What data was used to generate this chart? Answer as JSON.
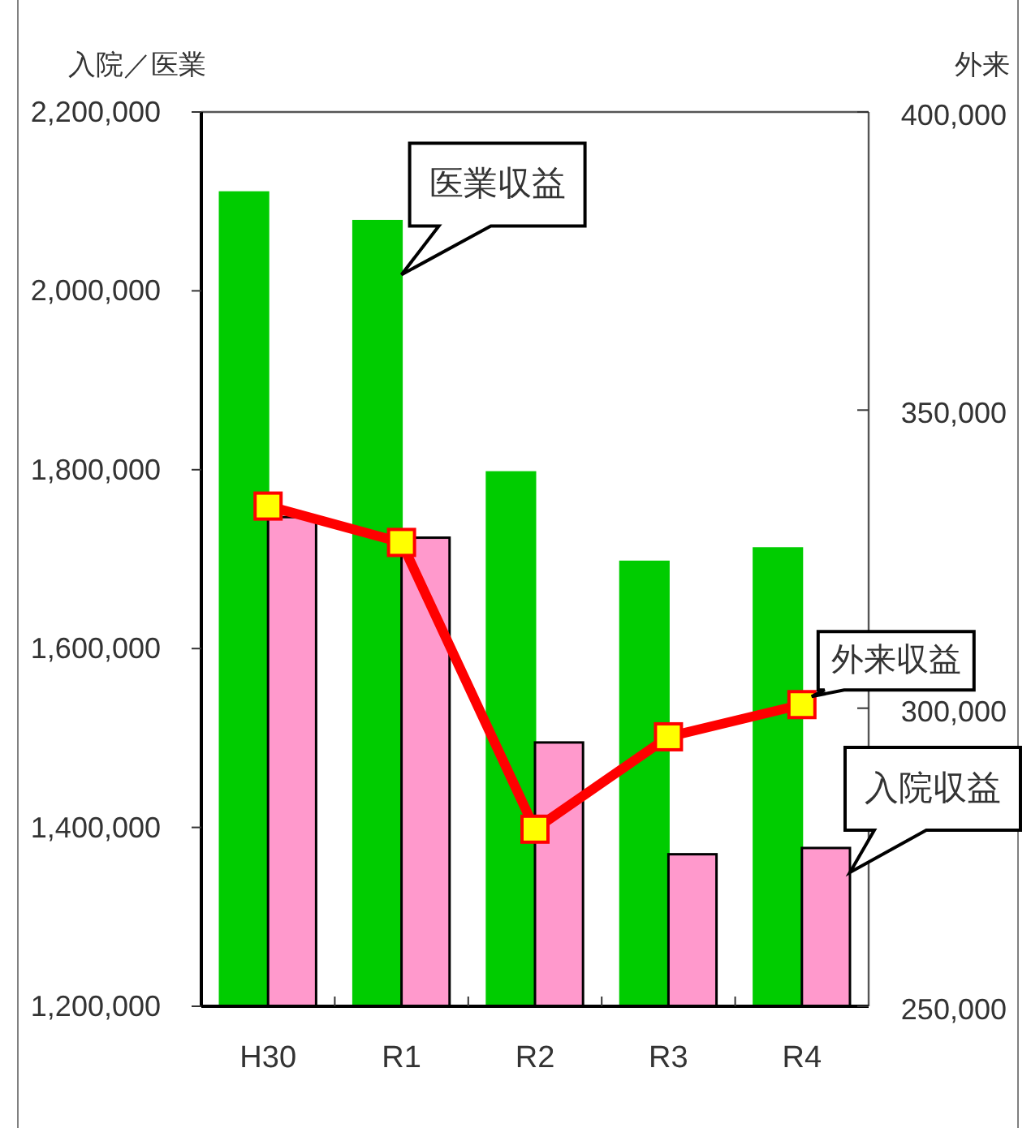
{
  "chart_data": {
    "type": "bar",
    "ylabel": "入院／医業",
    "y2label": "外来",
    "categories": [
      "H30",
      "R1",
      "R2",
      "R3",
      "R4"
    ],
    "series": [
      {
        "name": "医業収益",
        "color": "#00cc00",
        "values": [
          2110000,
          2078000,
          1797000,
          1697000,
          1712000
        ]
      },
      {
        "name": "入院収益",
        "color": "#ff99cc",
        "values": [
          1747000,
          1724000,
          1495000,
          1370000,
          1377000
        ]
      },
      {
        "name": "外来収益",
        "type": "line",
        "axis": "y2",
        "color": "#ff0000",
        "marker": "square",
        "values": [
          333900,
          327800,
          279700,
          295200,
          300600
        ]
      }
    ],
    "ylim": [
      1200000,
      2200000
    ],
    "yticks": [
      {
        "value": 1200000,
        "label": "1,200,000"
      },
      {
        "value": 1400000,
        "label": "1,400,000"
      },
      {
        "value": 1600000,
        "label": "1,600,000"
      },
      {
        "value": 1800000,
        "label": "1,800,000"
      },
      {
        "value": 2000000,
        "label": "2,000,000"
      },
      {
        "value": 2200000,
        "label": "2,200,000"
      }
    ],
    "y2lim": [
      250000,
      400000
    ],
    "y2ticks": [
      {
        "value": 250000,
        "label": "250,000"
      },
      {
        "value": 300000,
        "label": "300,000"
      },
      {
        "value": 350000,
        "label": "350,000"
      },
      {
        "value": 400000,
        "label": "400,000"
      }
    ]
  }
}
